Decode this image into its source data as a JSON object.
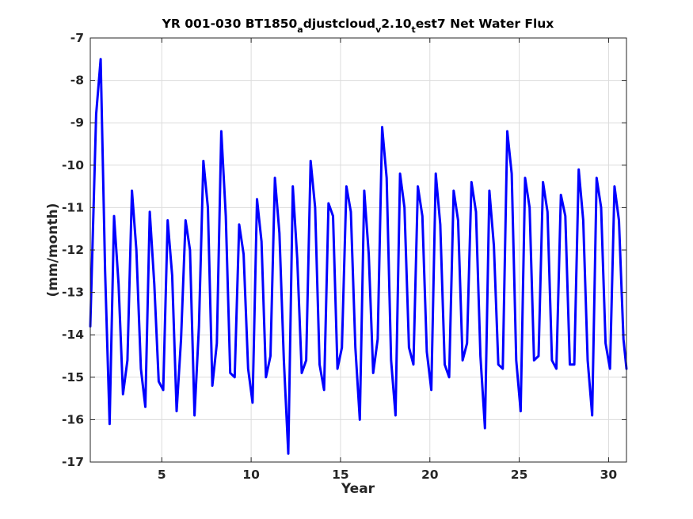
{
  "chart_data": {
    "type": "line",
    "title": {
      "prefix": "YR 001-030 BT1850",
      "sub1": "a",
      "part2": "djustcloud",
      "sub2": "v",
      "part3": "2.10",
      "sub3": "t",
      "part4": "est7 Net Water Flux"
    },
    "xlabel": "Year",
    "ylabel": "(mm/month)",
    "xlim": [
      1,
      31
    ],
    "ylim": [
      -17,
      -7
    ],
    "xticks": [
      5,
      10,
      15,
      20,
      25,
      30
    ],
    "yticks": [
      -17,
      -16,
      -15,
      -14,
      -13,
      -12,
      -11,
      -10,
      -9,
      -8,
      -7
    ],
    "grid": true,
    "series": [
      {
        "color": "#0000ff",
        "x": [
          1.0,
          1.33,
          1.58,
          1.83,
          2.08,
          2.33,
          2.58,
          2.83,
          3.08,
          3.33,
          3.58,
          3.83,
          4.08,
          4.33,
          4.58,
          4.83,
          5.08,
          5.33,
          5.58,
          5.83,
          6.08,
          6.33,
          6.58,
          6.83,
          7.08,
          7.33,
          7.58,
          7.83,
          8.08,
          8.33,
          8.58,
          8.83,
          9.08,
          9.33,
          9.58,
          9.83,
          10.08,
          10.33,
          10.58,
          10.83,
          11.08,
          11.33,
          11.58,
          11.83,
          12.08,
          12.33,
          12.58,
          12.83,
          13.08,
          13.33,
          13.58,
          13.83,
          14.08,
          14.33,
          14.58,
          14.83,
          15.08,
          15.33,
          15.58,
          15.83,
          16.08,
          16.33,
          16.58,
          16.83,
          17.08,
          17.33,
          17.58,
          17.83,
          18.08,
          18.33,
          18.58,
          18.83,
          19.08,
          19.33,
          19.58,
          19.83,
          20.08,
          20.33,
          20.58,
          20.83,
          21.08,
          21.33,
          21.58,
          21.83,
          22.08,
          22.33,
          22.58,
          22.83,
          23.08,
          23.33,
          23.58,
          23.83,
          24.08,
          24.33,
          24.58,
          24.83,
          25.08,
          25.33,
          25.58,
          25.83,
          26.08,
          26.33,
          26.58,
          26.83,
          27.08,
          27.33,
          27.58,
          27.83,
          28.08,
          28.33,
          28.58,
          28.83,
          29.08,
          29.33,
          29.58,
          29.83,
          30.08,
          30.33,
          30.58,
          30.83,
          31.0
        ],
        "y": [
          -13.8,
          -8.8,
          -7.5,
          -12.5,
          -16.1,
          -11.2,
          -12.8,
          -15.4,
          -14.6,
          -10.6,
          -12.0,
          -14.8,
          -15.7,
          -11.1,
          -12.8,
          -15.1,
          -15.3,
          -11.3,
          -12.6,
          -15.8,
          -14.1,
          -11.3,
          -12.0,
          -15.9,
          -13.8,
          -9.9,
          -11.0,
          -15.2,
          -14.2,
          -9.2,
          -11.2,
          -14.9,
          -15.0,
          -11.4,
          -12.1,
          -14.8,
          -15.6,
          -10.8,
          -11.8,
          -15.0,
          -14.5,
          -10.3,
          -11.6,
          -14.6,
          -16.8,
          -10.5,
          -12.2,
          -14.9,
          -14.6,
          -9.9,
          -11.0,
          -14.7,
          -15.3,
          -10.9,
          -11.2,
          -14.8,
          -14.3,
          -10.5,
          -11.1,
          -14.3,
          -16.0,
          -10.6,
          -12.1,
          -14.9,
          -14.1,
          -9.1,
          -10.3,
          -14.6,
          -15.9,
          -10.2,
          -11.0,
          -14.3,
          -14.7,
          -10.5,
          -11.2,
          -14.4,
          -15.3,
          -10.2,
          -11.4,
          -14.7,
          -15.0,
          -10.6,
          -11.3,
          -14.6,
          -14.2,
          -10.4,
          -11.1,
          -14.5,
          -16.2,
          -10.6,
          -11.9,
          -14.7,
          -14.8,
          -9.2,
          -10.2,
          -14.6,
          -15.8,
          -10.3,
          -11.0,
          -14.6,
          -14.5,
          -10.4,
          -11.1,
          -14.6,
          -14.8,
          -10.7,
          -11.2,
          -14.7,
          -14.7,
          -10.1,
          -11.3,
          -14.6,
          -15.9,
          -10.3,
          -11.0,
          -14.2,
          -14.8,
          -10.5,
          -11.3,
          -14.1,
          -14.8
        ]
      }
    ]
  }
}
